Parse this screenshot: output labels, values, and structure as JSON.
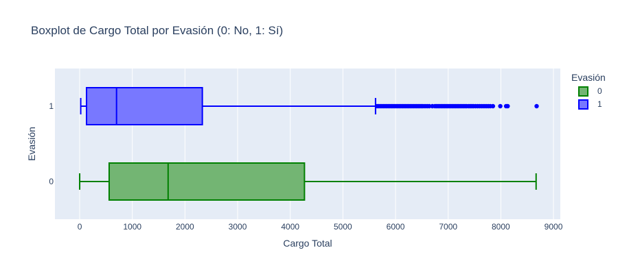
{
  "chart_data": {
    "type": "box",
    "orientation": "horizontal",
    "title": "Boxplot de Cargo Total por Evasión (0: No, 1: Sí)",
    "xlabel": "Cargo Total",
    "ylabel": "Evasión",
    "xlim": [
      -470,
      9130
    ],
    "xticks": [
      0,
      1000,
      2000,
      3000,
      4000,
      5000,
      6000,
      7000,
      8000,
      9000
    ],
    "categories": [
      "1",
      "0"
    ],
    "grid": true,
    "legend": {
      "title": "Evasión",
      "position": "top-right"
    },
    "series": [
      {
        "name": "0",
        "category": "0",
        "color": "#008000",
        "fill": "#73b573",
        "min": 0,
        "q1": 560,
        "median": 1680,
        "q3": 4270,
        "max": 8670,
        "outliers": []
      },
      {
        "name": "1",
        "category": "1",
        "color": "#0000ff",
        "fill": "#7878ff",
        "min": 20,
        "q1": 130,
        "median": 700,
        "q3": 2330,
        "max": 5620,
        "outliers": [
          5650,
          5680,
          5710,
          5740,
          5770,
          5800,
          5830,
          5860,
          5890,
          5920,
          5950,
          5980,
          6010,
          6040,
          6070,
          6100,
          6130,
          6160,
          6190,
          6220,
          6250,
          6280,
          6310,
          6340,
          6370,
          6400,
          6430,
          6460,
          6490,
          6520,
          6560,
          6600,
          6640,
          6700,
          6750,
          6780,
          6810,
          6840,
          6870,
          6900,
          6930,
          6960,
          6990,
          7020,
          7050,
          7080,
          7110,
          7140,
          7170,
          7200,
          7230,
          7260,
          7290,
          7320,
          7350,
          7390,
          7420,
          7450,
          7480,
          7520,
          7560,
          7600,
          7640,
          7680,
          7720,
          7760,
          7800,
          7850,
          7990,
          8100,
          8130,
          8680
        ]
      }
    ]
  }
}
